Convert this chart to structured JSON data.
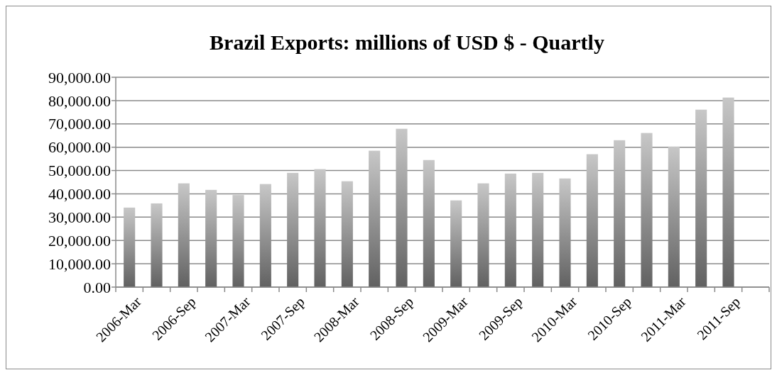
{
  "chart_data": {
    "type": "bar",
    "title": "Brazil Exports: millions of USD $ - Quartly",
    "categories": [
      "2006-Mar",
      null,
      "2006-Sep",
      null,
      "2007-Mar",
      null,
      "2007-Sep",
      null,
      "2008-Mar",
      null,
      "2008-Sep",
      null,
      "2009-Mar",
      null,
      "2009-Sep",
      null,
      "2010-Mar",
      null,
      "2010-Sep",
      null,
      "2011-Mar",
      null,
      "2011-Sep",
      null
    ],
    "values": [
      34100,
      35900,
      44500,
      41700,
      39500,
      44200,
      49000,
      50600,
      45400,
      58500,
      67900,
      54500,
      37200,
      44500,
      48700,
      49000,
      46600,
      57000,
      63000,
      66100,
      60300,
      76100,
      81300,
      null
    ],
    "color": "#909090",
    "ylim": [
      0,
      90000
    ],
    "yticks": [
      {
        "value": 0,
        "label": "0.00"
      },
      {
        "value": 10000,
        "label": "10,000.00"
      },
      {
        "value": 20000,
        "label": "20,000.00"
      },
      {
        "value": 30000,
        "label": "30,000.00"
      },
      {
        "value": 40000,
        "label": "40,000.00"
      },
      {
        "value": 50000,
        "label": "50,000.00"
      },
      {
        "value": 60000,
        "label": "60,000.00"
      },
      {
        "value": 70000,
        "label": "70,000.00"
      },
      {
        "value": 80000,
        "label": "80,000.00"
      },
      {
        "value": 90000,
        "label": "90,000.00"
      }
    ],
    "grid": "y"
  }
}
